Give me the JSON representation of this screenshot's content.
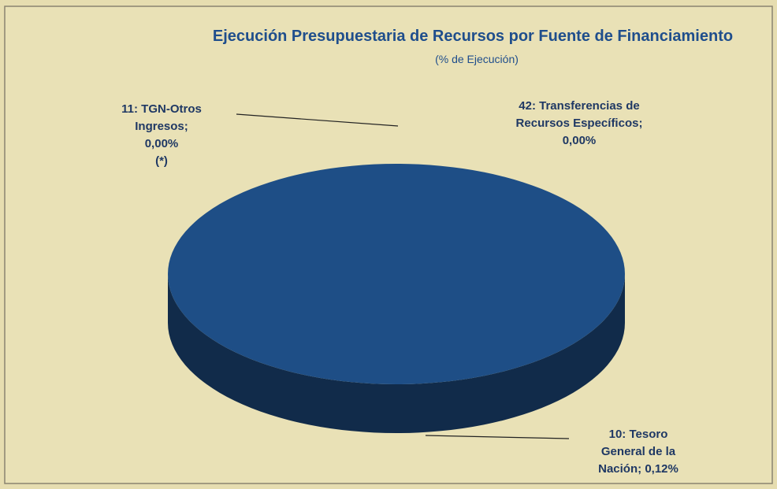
{
  "chart_data": {
    "type": "pie3d",
    "title": "Ejecución Presupuestaria de Recursos por Fuente de Financiamiento",
    "subtitle": "(% de Ejecución)",
    "categories": [
      "10: Tesoro General de la Nación;",
      "11: TGN-Otros Ingresos;",
      "42: Transferencias de Recursos Específicos;"
    ],
    "values": [
      0.12,
      0.0,
      0.0
    ],
    "value_labels": [
      "0,12%",
      "0,00%",
      "0,00%"
    ],
    "colors": [
      "#1e4e86",
      "#2a5f9e",
      "#3a6fae"
    ],
    "annotations": [
      "(*)"
    ]
  }
}
